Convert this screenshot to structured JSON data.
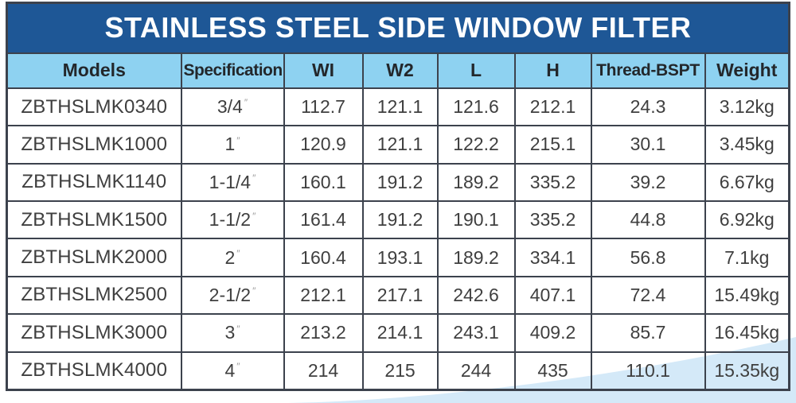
{
  "page": {
    "title_bar": "STAINLESS STEEL SIDE WINDOW FILTER"
  },
  "table": {
    "columns": [
      "Models",
      "Specification",
      "WI",
      "W2",
      "L",
      "H",
      "Thread-BSPT",
      "Weight"
    ],
    "spec_unit": "″",
    "rows": [
      {
        "model": "ZBTHSLMK0340",
        "spec": "3/4",
        "wi": "112.7",
        "w2": "121.1",
        "l": "121.6",
        "h": "212.1",
        "thread": "24.3",
        "weight": "3.12kg"
      },
      {
        "model": "ZBTHSLMK1000",
        "spec": "1",
        "wi": "120.9",
        "w2": "121.1",
        "l": "122.2",
        "h": "215.1",
        "thread": "30.1",
        "weight": "3.45kg"
      },
      {
        "model": "ZBTHSLMK1140",
        "spec": "1-1/4",
        "wi": "160.1",
        "w2": "191.2",
        "l": "189.2",
        "h": "335.2",
        "thread": "39.2",
        "weight": "6.67kg"
      },
      {
        "model": "ZBTHSLMK1500",
        "spec": "1-1/2",
        "wi": "161.4",
        "w2": "191.2",
        "l": "190.1",
        "h": "335.2",
        "thread": "44.8",
        "weight": "6.92kg"
      },
      {
        "model": "ZBTHSLMK2000",
        "spec": "2",
        "wi": "160.4",
        "w2": "193.1",
        "l": "189.2",
        "h": "334.1",
        "thread": "56.8",
        "weight": "7.1kg"
      },
      {
        "model": "ZBTHSLMK2500",
        "spec": "2-1/2",
        "wi": "212.1",
        "w2": "217.1",
        "l": "242.6",
        "h": "407.1",
        "thread": "72.4",
        "weight": "15.49kg"
      },
      {
        "model": "ZBTHSLMK3000",
        "spec": "3",
        "wi": "213.2",
        "w2": "214.1",
        "l": "243.1",
        "h": "409.2",
        "thread": "85.7",
        "weight": "16.45kg"
      },
      {
        "model": "ZBTHSLMK4000",
        "spec": "4",
        "wi": "214",
        "w2": "215",
        "l": "244",
        "h": "435",
        "thread": "110.1",
        "weight": "15.35kg"
      }
    ]
  },
  "colors": {
    "title_bg": "#1e5796",
    "header_bg": "#8ed2f1",
    "border": "#3c424d",
    "swoosh": "#d4e9f8",
    "text_dark": "#3f3f3f"
  }
}
